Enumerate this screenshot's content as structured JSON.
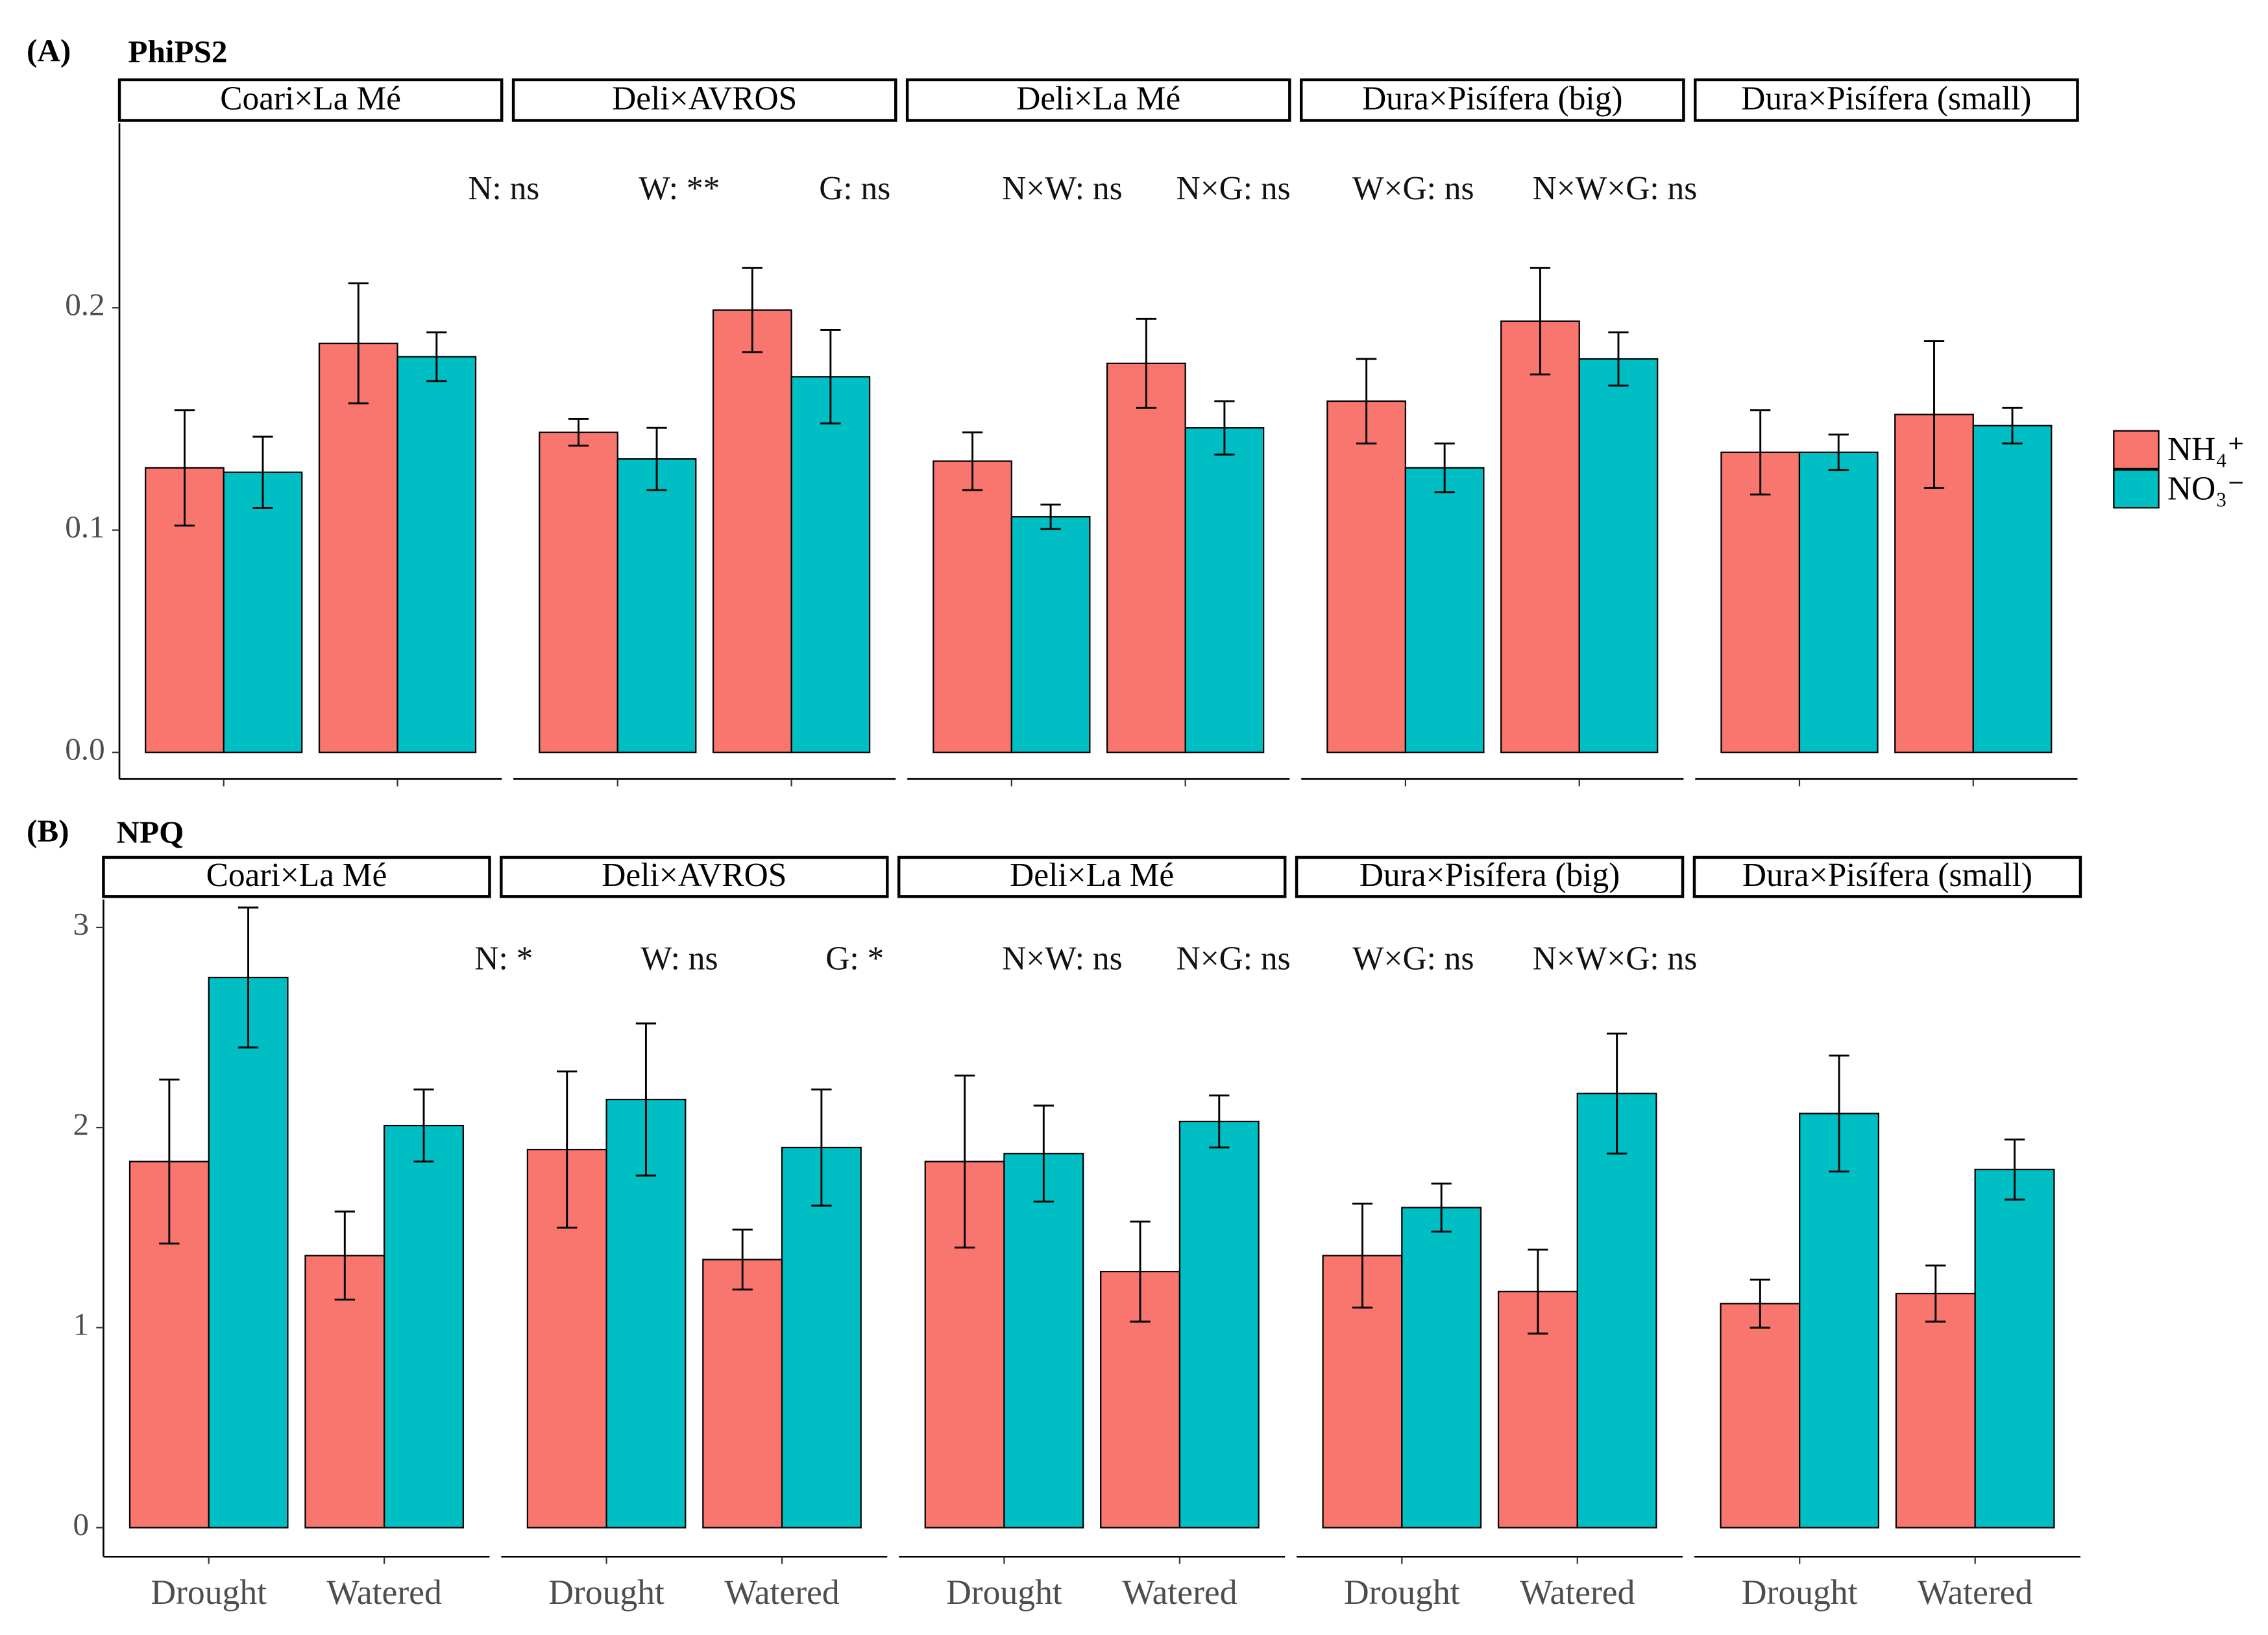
{
  "chart_data": [
    {
      "type": "bar",
      "panel_label": "(A)",
      "title": "PhiPS2",
      "facets": [
        "Coari×La Mé",
        "Deli×AVROS",
        "Deli×La Mé",
        "Dura×Pisífera (big)",
        "Dura×Pisífera (small)"
      ],
      "categories": [
        null,
        null
      ],
      "annotations": [
        "N: ns",
        "W: **",
        "G: ns",
        "N×W: ns",
        "N×G: ns",
        "W×G: ns",
        "N×W×G: ns"
      ],
      "series": [
        {
          "name": "NH₄⁺",
          "color": "#F8766D",
          "values": [
            [
              0.128,
              0.184
            ],
            [
              0.144,
              0.199
            ],
            [
              0.131,
              0.175
            ],
            [
              0.158,
              0.194
            ],
            [
              0.135,
              0.152
            ]
          ],
          "errors": [
            [
              0.026,
              0.027
            ],
            [
              0.006,
              0.019
            ],
            [
              0.013,
              0.02
            ],
            [
              0.019,
              0.024
            ],
            [
              0.019,
              0.033
            ]
          ]
        },
        {
          "name": "NO₃⁻",
          "color": "#00BFC4",
          "values": [
            [
              0.126,
              0.178
            ],
            [
              0.132,
              0.169
            ],
            [
              0.106,
              0.146
            ],
            [
              0.128,
              0.177
            ],
            [
              0.135,
              0.147
            ]
          ],
          "errors": [
            [
              0.016,
              0.011
            ],
            [
              0.014,
              0.021
            ],
            [
              0.0055,
              0.012
            ],
            [
              0.011,
              0.012
            ],
            [
              0.008,
              0.008
            ]
          ]
        }
      ],
      "ylim": [
        -0.012,
        0.283
      ],
      "yticks": [
        {
          "value": 0,
          "label": "0.0"
        },
        0.1,
        0.2
      ]
    },
    {
      "type": "bar",
      "panel_label": "(B)",
      "title": "NPQ",
      "facets": [
        "Coari×La Mé",
        "Deli×AVROS",
        "Deli×La Mé",
        "Dura×Pisífera (big)",
        "Dura×Pisífera (small)"
      ],
      "categories": [
        "Drought",
        "Watered"
      ],
      "annotations": [
        "N: *",
        "W: ns",
        "G: *",
        "N×W: ns",
        "N×G: ns",
        "W×G: ns",
        "N×W×G: ns"
      ],
      "series": [
        {
          "color": "#F8766D",
          "values": [
            [
              1.83,
              1.36
            ],
            [
              1.89,
              1.34
            ],
            [
              1.83,
              1.28
            ],
            [
              1.36,
              1.18
            ],
            [
              1.12,
              1.17
            ]
          ],
          "errors": [
            [
              0.41,
              0.22
            ],
            [
              0.39,
              0.15
            ],
            [
              0.43,
              0.25
            ],
            [
              0.26,
              0.21
            ],
            [
              0.12,
              0.14
            ]
          ]
        },
        {
          "color": "#00BFC4",
          "values": [
            [
              2.75,
              2.01
            ],
            [
              2.14,
              1.9
            ],
            [
              1.87,
              2.03
            ],
            [
              1.6,
              2.17
            ],
            [
              2.07,
              1.79
            ]
          ],
          "errors": [
            [
              0.35,
              0.18
            ],
            [
              0.38,
              0.29
            ],
            [
              0.24,
              0.13
            ],
            [
              0.12,
              0.3
            ],
            [
              0.29,
              0.15
            ]
          ]
        }
      ],
      "ylim": [
        -0.145,
        3.14
      ],
      "yticks": [
        0,
        1,
        2,
        3
      ]
    }
  ]
}
